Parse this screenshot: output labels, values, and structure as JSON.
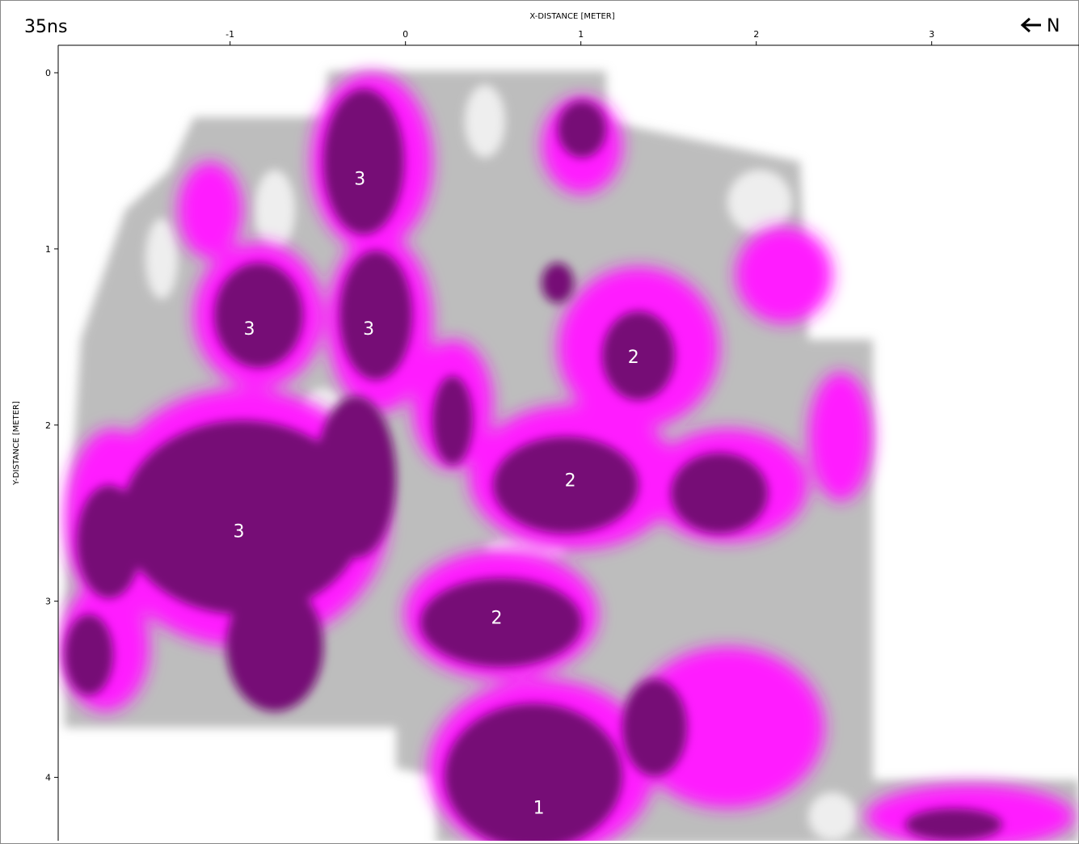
{
  "chart_data": {
    "type": "heatmap",
    "title": "35ns",
    "north_label": "N",
    "x_label": "X-DISTANCE [METER]",
    "y_label": "Y-DISTANCE [METER]",
    "xlim": [
      -1.98,
      3.84
    ],
    "ylim": [
      -0.156,
      4.36
    ],
    "y_inverted": true,
    "xticks": [
      -1,
      0,
      1,
      2,
      3
    ],
    "yticks": [
      0,
      1,
      2,
      3,
      4
    ],
    "annotations": [
      {
        "text": "3",
        "x": -0.26,
        "y": 0.6
      },
      {
        "text": "3",
        "x": -0.89,
        "y": 1.45
      },
      {
        "text": "3",
        "x": -0.21,
        "y": 1.45
      },
      {
        "text": "3",
        "x": -0.95,
        "y": 2.6
      },
      {
        "text": "2",
        "x": 1.3,
        "y": 1.61
      },
      {
        "text": "2",
        "x": 0.94,
        "y": 2.31
      },
      {
        "text": "2",
        "x": 0.52,
        "y": 3.09
      },
      {
        "text": "1",
        "x": 0.76,
        "y": 4.17
      }
    ]
  }
}
